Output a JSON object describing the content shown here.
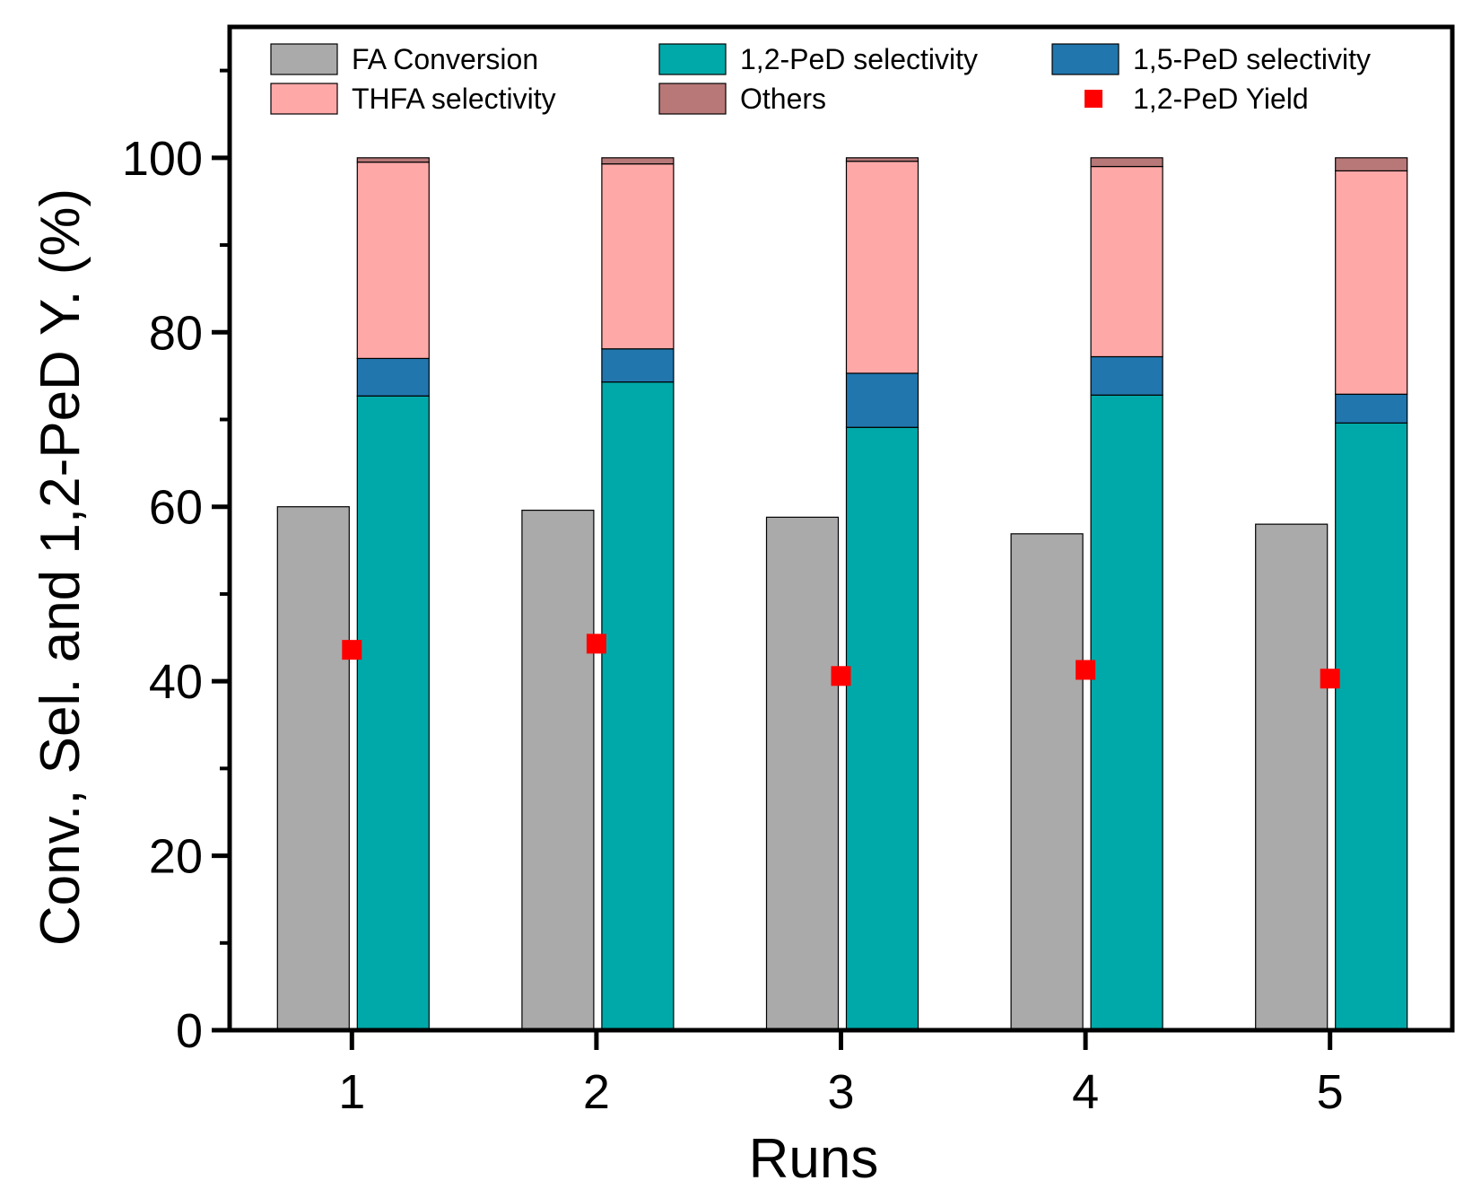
{
  "chart_data": {
    "type": "bar",
    "title": "",
    "xlabel": "Runs",
    "ylabel": "Conv., Sel. and 1,2-PeD Y. (%)",
    "categories": [
      "1",
      "2",
      "3",
      "4",
      "5"
    ],
    "ylim": [
      0,
      115
    ],
    "yticks": [
      0,
      20,
      40,
      60,
      80,
      100
    ],
    "grid": false,
    "legend_position": "top",
    "series": [
      {
        "name": "FA Conversion",
        "kind": "bar",
        "group": "conversion",
        "color": "#aaaaaa",
        "values": [
          60.0,
          59.6,
          58.8,
          56.9,
          58.0
        ]
      },
      {
        "name": "1,2-PeD selectivity",
        "kind": "stacked-bar",
        "group": "selectivity",
        "color": "#00a9a9",
        "values": [
          72.7,
          74.3,
          69.1,
          72.8,
          69.6
        ]
      },
      {
        "name": "1,5-PeD selectivity",
        "kind": "stacked-bar",
        "group": "selectivity",
        "color": "#2176ae",
        "values": [
          4.3,
          3.8,
          6.2,
          4.4,
          3.3
        ]
      },
      {
        "name": "THFA selectivity",
        "kind": "stacked-bar",
        "group": "selectivity",
        "color": "#ffa8a8",
        "values": [
          22.5,
          21.2,
          24.3,
          21.8,
          25.6
        ]
      },
      {
        "name": "Others",
        "kind": "stacked-bar",
        "group": "selectivity",
        "color": "#b87878",
        "values": [
          0.5,
          0.7,
          0.4,
          1.0,
          1.5
        ]
      },
      {
        "name": "1,2-PeD Yield",
        "kind": "scatter",
        "color": "#ff0000",
        "values": [
          43.6,
          44.3,
          40.6,
          41.3,
          40.3
        ]
      }
    ]
  }
}
